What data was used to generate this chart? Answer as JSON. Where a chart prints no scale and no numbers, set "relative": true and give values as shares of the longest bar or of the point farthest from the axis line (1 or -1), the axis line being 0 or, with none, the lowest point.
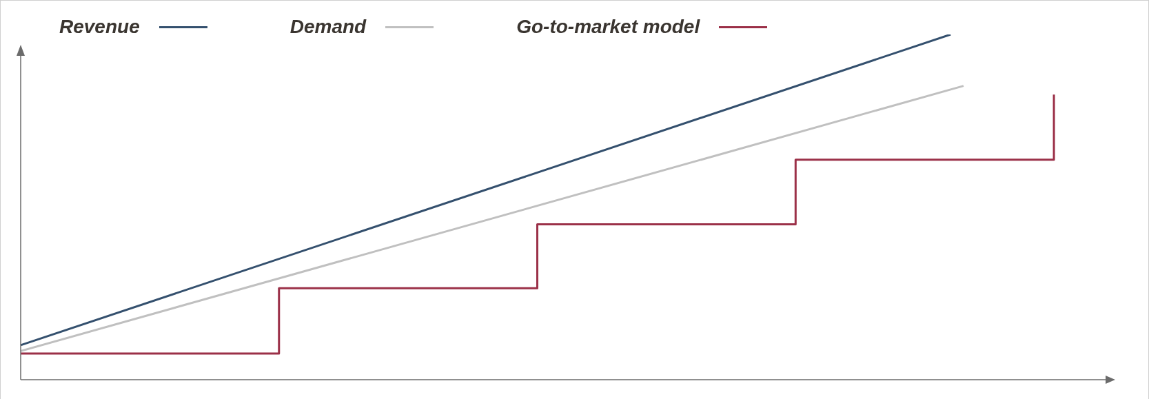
{
  "chart_data": {
    "type": "line",
    "relative": true,
    "legend": "top",
    "marker": "none",
    "categories": [
      null,
      null,
      null,
      null,
      null,
      null,
      null,
      null,
      null,
      null,
      null,
      null,
      null,
      null,
      null,
      null,
      null,
      null,
      null,
      null,
      null,
      null,
      null,
      null,
      null,
      null,
      null,
      null,
      null,
      null,
      null,
      null,
      null,
      null,
      null,
      null,
      null,
      null,
      null,
      null,
      null,
      null,
      null,
      null,
      null,
      null,
      null,
      null,
      null,
      null,
      null,
      null,
      null,
      null,
      null,
      null,
      null,
      null,
      null,
      null,
      null,
      null,
      null,
      null,
      null,
      null,
      null,
      null,
      null,
      null,
      null,
      null,
      null,
      null,
      null,
      null,
      null,
      null,
      null,
      null,
      null,
      null,
      null,
      null,
      null
    ],
    "series": [
      {
        "name": "Revenue",
        "color": "#34506e",
        "values": [
          0.1,
          null,
          null,
          null,
          null,
          null,
          null,
          null,
          null,
          null,
          null,
          null,
          null,
          null,
          null,
          null,
          null,
          null,
          null,
          null,
          null,
          null,
          null,
          null,
          null,
          null,
          null,
          null,
          null,
          null,
          null,
          null,
          null,
          null,
          null,
          null,
          null,
          null,
          null,
          null,
          null,
          null,
          null,
          null,
          null,
          null,
          null,
          null,
          null,
          null,
          null,
          null,
          null,
          null,
          null,
          null,
          null,
          null,
          null,
          null,
          null,
          null,
          null,
          null,
          null,
          null,
          null,
          null,
          null,
          null,
          null,
          null,
          1,
          null,
          null,
          null,
          null,
          null,
          null,
          null,
          null,
          null,
          null,
          null,
          null
        ]
      },
      {
        "name": "Demand",
        "color": "#c0c0c0",
        "values": [
          0.083,
          null,
          null,
          null,
          null,
          null,
          null,
          null,
          null,
          null,
          null,
          null,
          null,
          null,
          null,
          null,
          null,
          null,
          null,
          null,
          null,
          null,
          null,
          null,
          null,
          null,
          null,
          null,
          null,
          null,
          null,
          null,
          null,
          null,
          null,
          null,
          null,
          null,
          null,
          null,
          null,
          null,
          null,
          null,
          null,
          null,
          null,
          null,
          null,
          null,
          null,
          null,
          null,
          null,
          null,
          null,
          null,
          null,
          null,
          null,
          null,
          null,
          null,
          null,
          null,
          null,
          null,
          null,
          null,
          null,
          null,
          null,
          null,
          0.851,
          null,
          null,
          null,
          null,
          null,
          null,
          null,
          null,
          null,
          null,
          null
        ]
      },
      {
        "name": "Go-to-market model",
        "type": "step",
        "color": "#9b3048",
        "values": [
          0.076,
          null,
          null,
          null,
          null,
          null,
          null,
          null,
          null,
          null,
          null,
          null,
          null,
          null,
          null,
          null,
          null,
          null,
          null,
          null,
          0.265,
          null,
          null,
          null,
          null,
          null,
          null,
          null,
          null,
          null,
          null,
          null,
          null,
          null,
          null,
          null,
          null,
          null,
          null,
          null,
          0.45,
          null,
          null,
          null,
          null,
          null,
          null,
          null,
          null,
          null,
          null,
          null,
          null,
          null,
          null,
          null,
          null,
          null,
          null,
          null,
          0.637,
          null,
          null,
          null,
          null,
          null,
          null,
          null,
          null,
          null,
          null,
          null,
          null,
          null,
          null,
          null,
          null,
          null,
          null,
          null,
          0.826,
          null,
          null,
          null,
          null
        ]
      }
    ]
  }
}
